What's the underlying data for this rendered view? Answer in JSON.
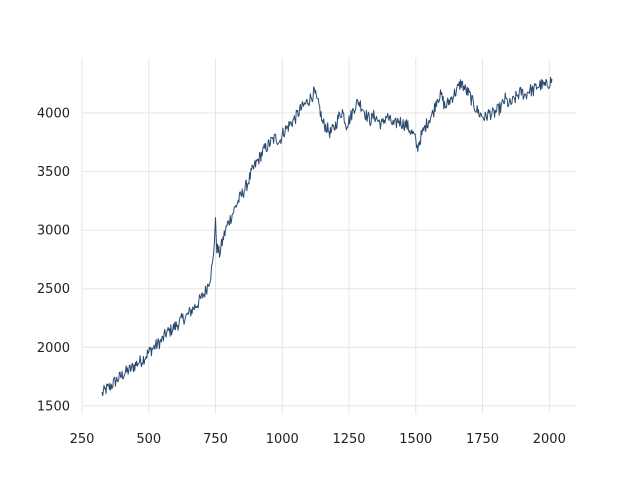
{
  "chart_data": {
    "type": "line",
    "title": "",
    "xlabel": "",
    "ylabel": "",
    "xlim": [
      250,
      2100
    ],
    "ylim": [
      1430,
      4470
    ],
    "grid": true,
    "legend": "none",
    "x_ticks": [
      250,
      500,
      750,
      1000,
      1250,
      1500,
      1750,
      2000
    ],
    "x_tick_labels": [
      "250",
      "500",
      "750",
      "1000",
      "1250",
      "1500",
      "1750",
      "2000"
    ],
    "y_ticks": [
      1500,
      2000,
      2500,
      3000,
      3500,
      4000
    ],
    "y_tick_labels": [
      "1500",
      "2000",
      "2500",
      "3000",
      "3500",
      "4000"
    ],
    "series": [
      {
        "color": "#2b4a6f",
        "x": [
          325,
          340,
          355,
          370,
          385,
          400,
          415,
          430,
          445,
          460,
          475,
          490,
          505,
          520,
          535,
          550,
          565,
          580,
          595,
          610,
          625,
          640,
          655,
          670,
          685,
          700,
          715,
          730,
          740,
          745,
          750,
          755,
          765,
          780,
          795,
          810,
          825,
          840,
          855,
          870,
          885,
          900,
          915,
          930,
          945,
          960,
          975,
          990,
          1005,
          1020,
          1035,
          1050,
          1065,
          1080,
          1095,
          1110,
          1120,
          1130,
          1140,
          1150,
          1165,
          1180,
          1195,
          1210,
          1225,
          1240,
          1255,
          1270,
          1285,
          1300,
          1315,
          1330,
          1345,
          1360,
          1375,
          1390,
          1405,
          1420,
          1435,
          1450,
          1465,
          1480,
          1495,
          1505,
          1520,
          1535,
          1550,
          1565,
          1580,
          1595,
          1610,
          1625,
          1640,
          1655,
          1670,
          1685,
          1700,
          1715,
          1730,
          1745,
          1760,
          1775,
          1790,
          1805,
          1820,
          1835,
          1850,
          1865,
          1880,
          1895,
          1910,
          1925,
          1940,
          1955,
          1970,
          1985,
          2000,
          2010
        ],
        "y": [
          1600,
          1640,
          1660,
          1700,
          1730,
          1760,
          1790,
          1810,
          1840,
          1870,
          1890,
          1930,
          1970,
          2000,
          2030,
          2060,
          2120,
          2140,
          2170,
          2200,
          2240,
          2260,
          2300,
          2340,
          2380,
          2430,
          2490,
          2600,
          2720,
          2900,
          3060,
          2850,
          2800,
          2940,
          3050,
          3120,
          3200,
          3270,
          3330,
          3400,
          3490,
          3560,
          3620,
          3680,
          3720,
          3760,
          3790,
          3760,
          3840,
          3880,
          3920,
          3960,
          4020,
          4060,
          4100,
          4140,
          4180,
          4100,
          4040,
          3920,
          3880,
          3830,
          3870,
          3960,
          4020,
          3900,
          3960,
          4050,
          4100,
          4050,
          3980,
          3940,
          3980,
          3930,
          3900,
          3980,
          3930,
          3890,
          3940,
          3910,
          3900,
          3850,
          3800,
          3700,
          3800,
          3880,
          3950,
          4000,
          4130,
          4150,
          4050,
          4100,
          4150,
          4200,
          4260,
          4200,
          4160,
          4080,
          4020,
          3980,
          3960,
          4000,
          3990,
          4020,
          4050,
          4120,
          4070,
          4100,
          4150,
          4180,
          4150,
          4200,
          4190,
          4230,
          4240,
          4230,
          4260,
          4290
        ]
      }
    ]
  }
}
